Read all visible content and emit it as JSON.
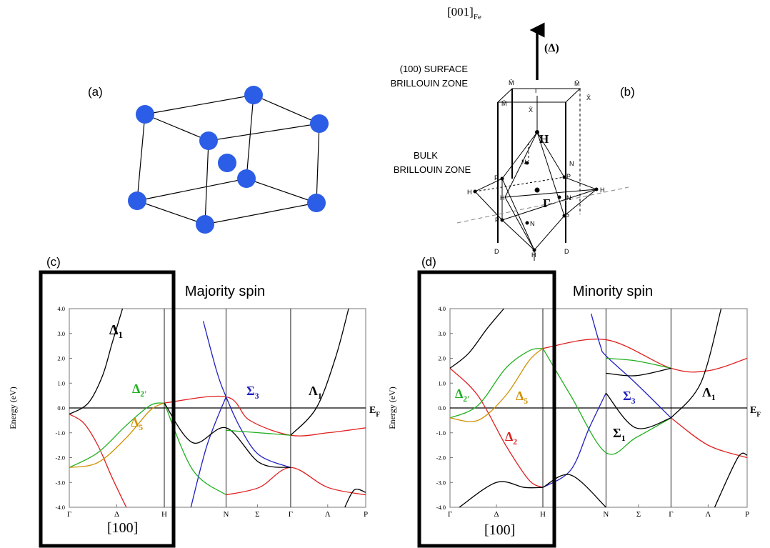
{
  "panel_labels": {
    "a": "(a)",
    "b": "(b)"
  },
  "brillouin": {
    "axis": "[001]",
    "axis_sub": "Fe",
    "delta": "(Δ)",
    "surface": [
      "(100) SURFACE",
      "BRILLOUIN ZONE"
    ],
    "bulk": [
      "BULK",
      "BRILLOUIN ZONE"
    ],
    "points": [
      "Γ̄",
      "M̄",
      "M̄",
      "X̄",
      "M̄",
      "X̄",
      "H",
      "N",
      "N",
      "P",
      "P",
      "H",
      "H",
      "Γ",
      "N",
      "H",
      "P",
      "P",
      "N",
      "D",
      "H",
      "D"
    ]
  },
  "chart_data": [
    {
      "type": "line",
      "panel": "(c)",
      "title": "Majority spin",
      "ylabel": "Energy (eV)",
      "xlim": [
        0,
        3.12
      ],
      "ylim": [
        -4,
        4
      ],
      "xticks": [
        {
          "value": 0,
          "label": "Γ"
        },
        {
          "value": 0.5,
          "label": "Δ"
        },
        {
          "value": 1,
          "label": "H"
        },
        {
          "value": 1.65,
          "label": "N"
        },
        {
          "value": 1.98,
          "label": "Σ"
        },
        {
          "value": 2.33,
          "label": "Γ"
        },
        {
          "value": 2.72,
          "label": "Λ"
        },
        {
          "value": 3.12,
          "label": "P"
        }
      ],
      "yticks": [
        {
          "value": 4,
          "label": "4.0"
        },
        {
          "value": 3,
          "label": "3.0"
        },
        {
          "value": 2,
          "label": "2.0"
        },
        {
          "value": 1,
          "label": "1.0"
        },
        {
          "value": 0,
          "label": "0.0"
        },
        {
          "value": -1,
          "label": "-1.0"
        },
        {
          "value": -2,
          "label": "-2.0"
        },
        {
          "value": -3,
          "label": "-3.0"
        },
        {
          "value": -4,
          "label": "-4.0"
        }
      ],
      "series": [
        {
          "color": "#000000",
          "x": [
            0,
            0.2,
            0.35,
            0.45,
            0.56
          ],
          "values": [
            -0.25,
            0.2,
            1.3,
            2.6,
            4.0
          ]
        },
        {
          "color": "#e02020",
          "x": [
            0,
            0.15,
            0.3,
            0.45,
            0.6
          ],
          "values": [
            -0.25,
            -0.6,
            -1.5,
            -2.8,
            -4.0
          ]
        },
        {
          "color": "#20b020",
          "x": [
            0,
            0.3,
            0.6,
            0.85,
            1
          ],
          "values": [
            -2.4,
            -1.8,
            -0.7,
            0.1,
            0.2
          ]
        },
        {
          "color": "#d09000",
          "x": [
            0,
            0.3,
            0.6,
            0.85,
            1
          ],
          "values": [
            -2.4,
            -2.2,
            -1.2,
            -0.1,
            0.2
          ]
        },
        {
          "color": "#e02020",
          "x": [
            1,
            1.65,
            1.9,
            2.33,
            2.72,
            3.12
          ],
          "values": [
            0.2,
            0.45,
            -0.5,
            -1.1,
            -1.0,
            -0.8
          ]
        },
        {
          "color": "#2020c0",
          "x": [
            1.41,
            1.55,
            1.65,
            1.8,
            2.0,
            2.33
          ],
          "values": [
            3.5,
            1.5,
            0.45,
            -0.8,
            -1.9,
            -2.4
          ]
        },
        {
          "color": "#2020c0",
          "x": [
            1.28,
            1.45,
            1.65
          ],
          "values": [
            -4.0,
            -1.5,
            0.45
          ]
        },
        {
          "color": "#20b020",
          "x": [
            1,
            1.3,
            1.65
          ],
          "values": [
            0.2,
            -2.5,
            -3.5
          ]
        },
        {
          "color": "#e02020",
          "x": [
            1.65,
            2.0,
            2.33,
            2.72,
            3.12
          ],
          "values": [
            -3.5,
            -3.2,
            -2.4,
            -3.2,
            -3.5
          ]
        },
        {
          "color": "#000000",
          "x": [
            1,
            1.3,
            1.65,
            2.0,
            2.33
          ],
          "values": [
            0.2,
            -1.4,
            -0.8,
            -2.2,
            -2.4
          ]
        },
        {
          "color": "#20b020",
          "x": [
            1.65,
            2.0,
            2.33
          ],
          "values": [
            -0.9,
            -1.0,
            -1.1
          ]
        },
        {
          "color": "#000000",
          "x": [
            2.33,
            2.6,
            2.8,
            2.94
          ],
          "values": [
            -1.1,
            0,
            2,
            4
          ]
        },
        {
          "color": "#000000",
          "x": [
            2.9,
            3.0,
            3.12
          ],
          "values": [
            -4,
            -3.3,
            -3.4
          ]
        }
      ],
      "annotations": [
        {
          "text": "Δ",
          "sub": "1",
          "color": "#000000"
        },
        {
          "text": "Δ",
          "sub": "2'",
          "color": "#20b020"
        },
        {
          "text": "Δ",
          "sub": "5",
          "color": "#d09000"
        },
        {
          "text": "Σ",
          "sub": "3",
          "color": "#2020c0"
        },
        {
          "text": "Λ",
          "sub": "1",
          "color": "#000000"
        },
        {
          "text": "E",
          "sub": "F",
          "color": "#000000"
        },
        {
          "text": "[100]",
          "color": "#000000"
        }
      ]
    },
    {
      "type": "line",
      "panel": "(d)",
      "title": "Minority spin",
      "ylabel": "Energy (eV)",
      "xlim": [
        0,
        3.2
      ],
      "ylim": [
        -4,
        4
      ],
      "xticks": [
        {
          "value": 0,
          "label": "Γ"
        },
        {
          "value": 0.5,
          "label": "Δ"
        },
        {
          "value": 1,
          "label": "H"
        },
        {
          "value": 1.68,
          "label": "N"
        },
        {
          "value": 2.03,
          "label": "Σ"
        },
        {
          "value": 2.38,
          "label": "Γ"
        },
        {
          "value": 2.78,
          "label": "Λ"
        },
        {
          "value": 3.2,
          "label": "P"
        }
      ],
      "yticks": [
        {
          "value": 4,
          "label": "4.0"
        },
        {
          "value": 3,
          "label": "3.0"
        },
        {
          "value": 2,
          "label": "2.0"
        },
        {
          "value": 1,
          "label": "1.0"
        },
        {
          "value": 0,
          "label": "0.0"
        },
        {
          "value": -1,
          "label": "-1.0"
        },
        {
          "value": -2,
          "label": "-2.0"
        },
        {
          "value": -3,
          "label": "-3.0"
        },
        {
          "value": -4,
          "label": "-4.0"
        }
      ],
      "series": [
        {
          "color": "#e02020",
          "x": [
            0,
            0.3,
            0.6,
            0.85,
            1
          ],
          "values": [
            1.6,
            0.5,
            -1.5,
            -2.9,
            -3.2
          ]
        },
        {
          "color": "#000000",
          "x": [
            0,
            0.2,
            0.4,
            0.58
          ],
          "values": [
            1.6,
            2.2,
            3.2,
            4.0
          ]
        },
        {
          "color": "#20b020",
          "x": [
            0,
            0.3,
            0.6,
            0.85,
            1
          ],
          "values": [
            -0.4,
            0.1,
            1.6,
            2.3,
            2.4
          ]
        },
        {
          "color": "#d09000",
          "x": [
            0,
            0.3,
            0.6,
            0.85,
            1
          ],
          "values": [
            -0.4,
            -0.5,
            0.5,
            1.9,
            2.4
          ]
        },
        {
          "color": "#e02020",
          "x": [
            1,
            1.68,
            2.38,
            2.78,
            3.2
          ],
          "values": [
            2.4,
            2.75,
            1.6,
            1.5,
            2.0
          ]
        },
        {
          "color": "#20b020",
          "x": [
            1,
            1.3,
            1.68,
            2.0,
            2.38
          ],
          "values": [
            2.4,
            0.5,
            -1.8,
            -1.2,
            -0.4
          ]
        },
        {
          "color": "#2020c0",
          "x": [
            1.52,
            1.62,
            1.68,
            2.0,
            2.38
          ],
          "values": [
            3.8,
            2.5,
            2.1,
            1.0,
            -0.4
          ]
        },
        {
          "color": "#2020c0",
          "x": [
            1,
            1.3,
            1.5,
            1.68
          ],
          "values": [
            -3.2,
            -2.5,
            -0.8,
            0.6
          ]
        },
        {
          "color": "#000000",
          "x": [
            1.68,
            2.0,
            2.38
          ],
          "values": [
            0.6,
            -0.8,
            -0.4
          ]
        },
        {
          "color": "#20b020",
          "x": [
            1.68,
            2.0,
            2.38
          ],
          "values": [
            2.0,
            1.9,
            1.6
          ]
        },
        {
          "color": "#000000",
          "x": [
            1.68,
            2.0,
            2.38
          ],
          "values": [
            1.4,
            1.3,
            1.6
          ]
        },
        {
          "color": "#e02020",
          "x": [
            2.38,
            2.78,
            3.2
          ],
          "values": [
            -0.4,
            -1.5,
            -2.0
          ]
        },
        {
          "color": "#000000",
          "x": [
            2.38,
            2.7,
            2.92
          ],
          "values": [
            -0.4,
            1.0,
            4.0
          ]
        },
        {
          "color": "#000000",
          "x": [
            0.1,
            0.5,
            0.8,
            1
          ],
          "values": [
            -4.0,
            -3.0,
            -3.2,
            -3.2
          ]
        },
        {
          "color": "#000000",
          "x": [
            1,
            1.3,
            1.68
          ],
          "values": [
            -3.2,
            -2.7,
            -4.0
          ]
        },
        {
          "color": "#000000",
          "x": [
            2.85,
            3.1,
            3.2
          ],
          "values": [
            -4.0,
            -2.0,
            -1.9
          ]
        }
      ],
      "annotations": [
        {
          "text": "Δ",
          "sub": "2'",
          "color": "#20b020"
        },
        {
          "text": "Δ",
          "sub": "5",
          "color": "#d09000"
        },
        {
          "text": "Δ",
          "sub": "2",
          "color": "#e02020"
        },
        {
          "text": "Σ",
          "sub": "3",
          "color": "#2020c0"
        },
        {
          "text": "Σ",
          "sub": "1",
          "color": "#000000"
        },
        {
          "text": "Λ",
          "sub": "1",
          "color": "#000000"
        },
        {
          "text": "E",
          "sub": "F",
          "color": "#000000"
        },
        {
          "text": "[100]",
          "color": "#000000"
        }
      ]
    }
  ]
}
